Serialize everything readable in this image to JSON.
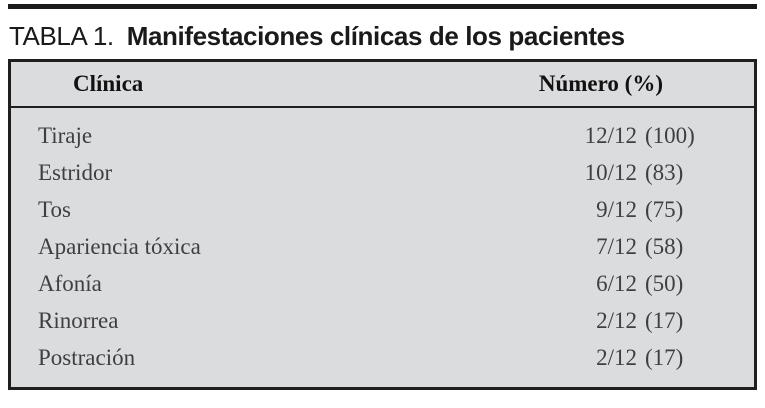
{
  "document": {
    "title": {
      "label": "TABLA 1.",
      "heading": "Manifestaciones clínicas de los pacientes"
    }
  },
  "table": {
    "header": {
      "clinica": "Clínica",
      "numero": "Número (%)"
    },
    "rows": [
      {
        "clinica": "Tiraje",
        "fraction": "12/12",
        "percent": "(100)"
      },
      {
        "clinica": "Estridor",
        "fraction": "10/12",
        "percent": "(83)"
      },
      {
        "clinica": "Tos",
        "fraction": "9/12",
        "percent": "(75)"
      },
      {
        "clinica": "Apariencia tóxica",
        "fraction": "7/12",
        "percent": "(58)"
      },
      {
        "clinica": "Afonía",
        "fraction": "6/12",
        "percent": "(50)"
      },
      {
        "clinica": "Rinorrea",
        "fraction": "2/12",
        "percent": "(17)"
      },
      {
        "clinica": "Postración",
        "fraction": "2/12",
        "percent": "(17)"
      }
    ],
    "colors": {
      "table_background": "#dbdcde",
      "border": "#1f1f1f",
      "body_text": "#3f3f3f",
      "header_text": "#121212",
      "rule": "#1a1a1a"
    }
  },
  "chart_data": {
    "type": "table",
    "title": "TABLA 1. Manifestaciones clínicas de los pacientes",
    "columns": [
      "Clínica",
      "Número (%)"
    ],
    "rows": [
      [
        "Tiraje",
        "12/12 (100)"
      ],
      [
        "Estridor",
        "10/12 (83)"
      ],
      [
        "Tos",
        "9/12 (75)"
      ],
      [
        "Apariencia tóxica",
        "7/12 (58)"
      ],
      [
        "Afonía",
        "6/12 (50)"
      ],
      [
        "Rinorrea",
        "2/12 (17)"
      ],
      [
        "Postración",
        "2/12 (17)"
      ]
    ]
  }
}
